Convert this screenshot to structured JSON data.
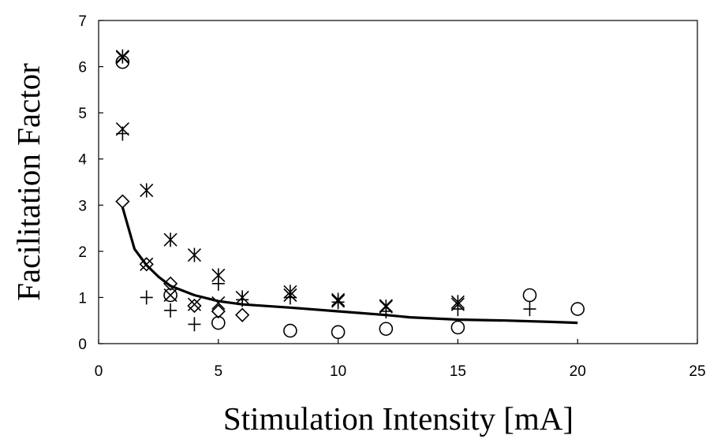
{
  "chart_data": {
    "type": "scatter",
    "title": "",
    "xlabel": "Stimulation Intensity [mA]",
    "ylabel": "Facilitation Factor",
    "xlim": [
      0,
      25
    ],
    "ylim": [
      0,
      7
    ],
    "x_ticks": [
      0,
      5,
      10,
      15,
      20,
      25
    ],
    "y_ticks": [
      0,
      1,
      2,
      3,
      4,
      5,
      6,
      7
    ],
    "grid": false,
    "legend": "none",
    "series": [
      {
        "marker": "circle",
        "points": [
          [
            1,
            6.1
          ],
          [
            3,
            1.05
          ],
          [
            5,
            0.45
          ],
          [
            8,
            0.28
          ],
          [
            10,
            0.25
          ],
          [
            12,
            0.32
          ],
          [
            15,
            0.35
          ],
          [
            18,
            1.05
          ],
          [
            20,
            0.75
          ]
        ]
      },
      {
        "marker": "x",
        "points": [
          [
            1,
            6.2
          ],
          [
            1,
            4.65
          ],
          [
            2,
            1.72
          ],
          [
            3,
            1.05
          ],
          [
            4,
            0.85
          ],
          [
            5,
            0.88
          ],
          [
            8,
            1.05
          ],
          [
            10,
            0.92
          ],
          [
            12,
            0.82
          ],
          [
            15,
            0.85
          ]
        ]
      },
      {
        "marker": "asterisk",
        "points": [
          [
            1,
            6.22
          ],
          [
            2,
            3.32
          ],
          [
            3,
            2.25
          ],
          [
            4,
            1.92
          ],
          [
            5,
            1.48
          ],
          [
            6,
            1.0
          ],
          [
            8,
            1.12
          ],
          [
            10,
            0.95
          ],
          [
            12,
            0.8
          ],
          [
            15,
            0.9
          ]
        ]
      },
      {
        "marker": "plus",
        "points": [
          [
            1,
            4.55
          ],
          [
            2,
            1.0
          ],
          [
            3,
            0.72
          ],
          [
            4,
            0.42
          ],
          [
            5,
            1.3
          ],
          [
            6,
            0.95
          ],
          [
            8,
            1.0
          ],
          [
            10,
            0.9
          ],
          [
            12,
            0.7
          ],
          [
            15,
            0.75
          ],
          [
            18,
            0.75
          ]
        ]
      },
      {
        "marker": "diamond",
        "points": [
          [
            1,
            3.08
          ],
          [
            2,
            1.72
          ],
          [
            3,
            1.3
          ],
          [
            4,
            0.82
          ],
          [
            5,
            0.7
          ],
          [
            6,
            0.62
          ]
        ]
      }
    ],
    "fit_line": {
      "x": [
        1,
        1.5,
        2,
        2.5,
        3,
        4,
        5,
        6,
        8,
        10,
        12,
        13,
        15,
        17,
        19,
        20
      ],
      "y": [
        2.95,
        2.05,
        1.7,
        1.45,
        1.25,
        1.05,
        0.92,
        0.85,
        0.78,
        0.7,
        0.62,
        0.57,
        0.52,
        0.5,
        0.47,
        0.45
      ]
    }
  }
}
